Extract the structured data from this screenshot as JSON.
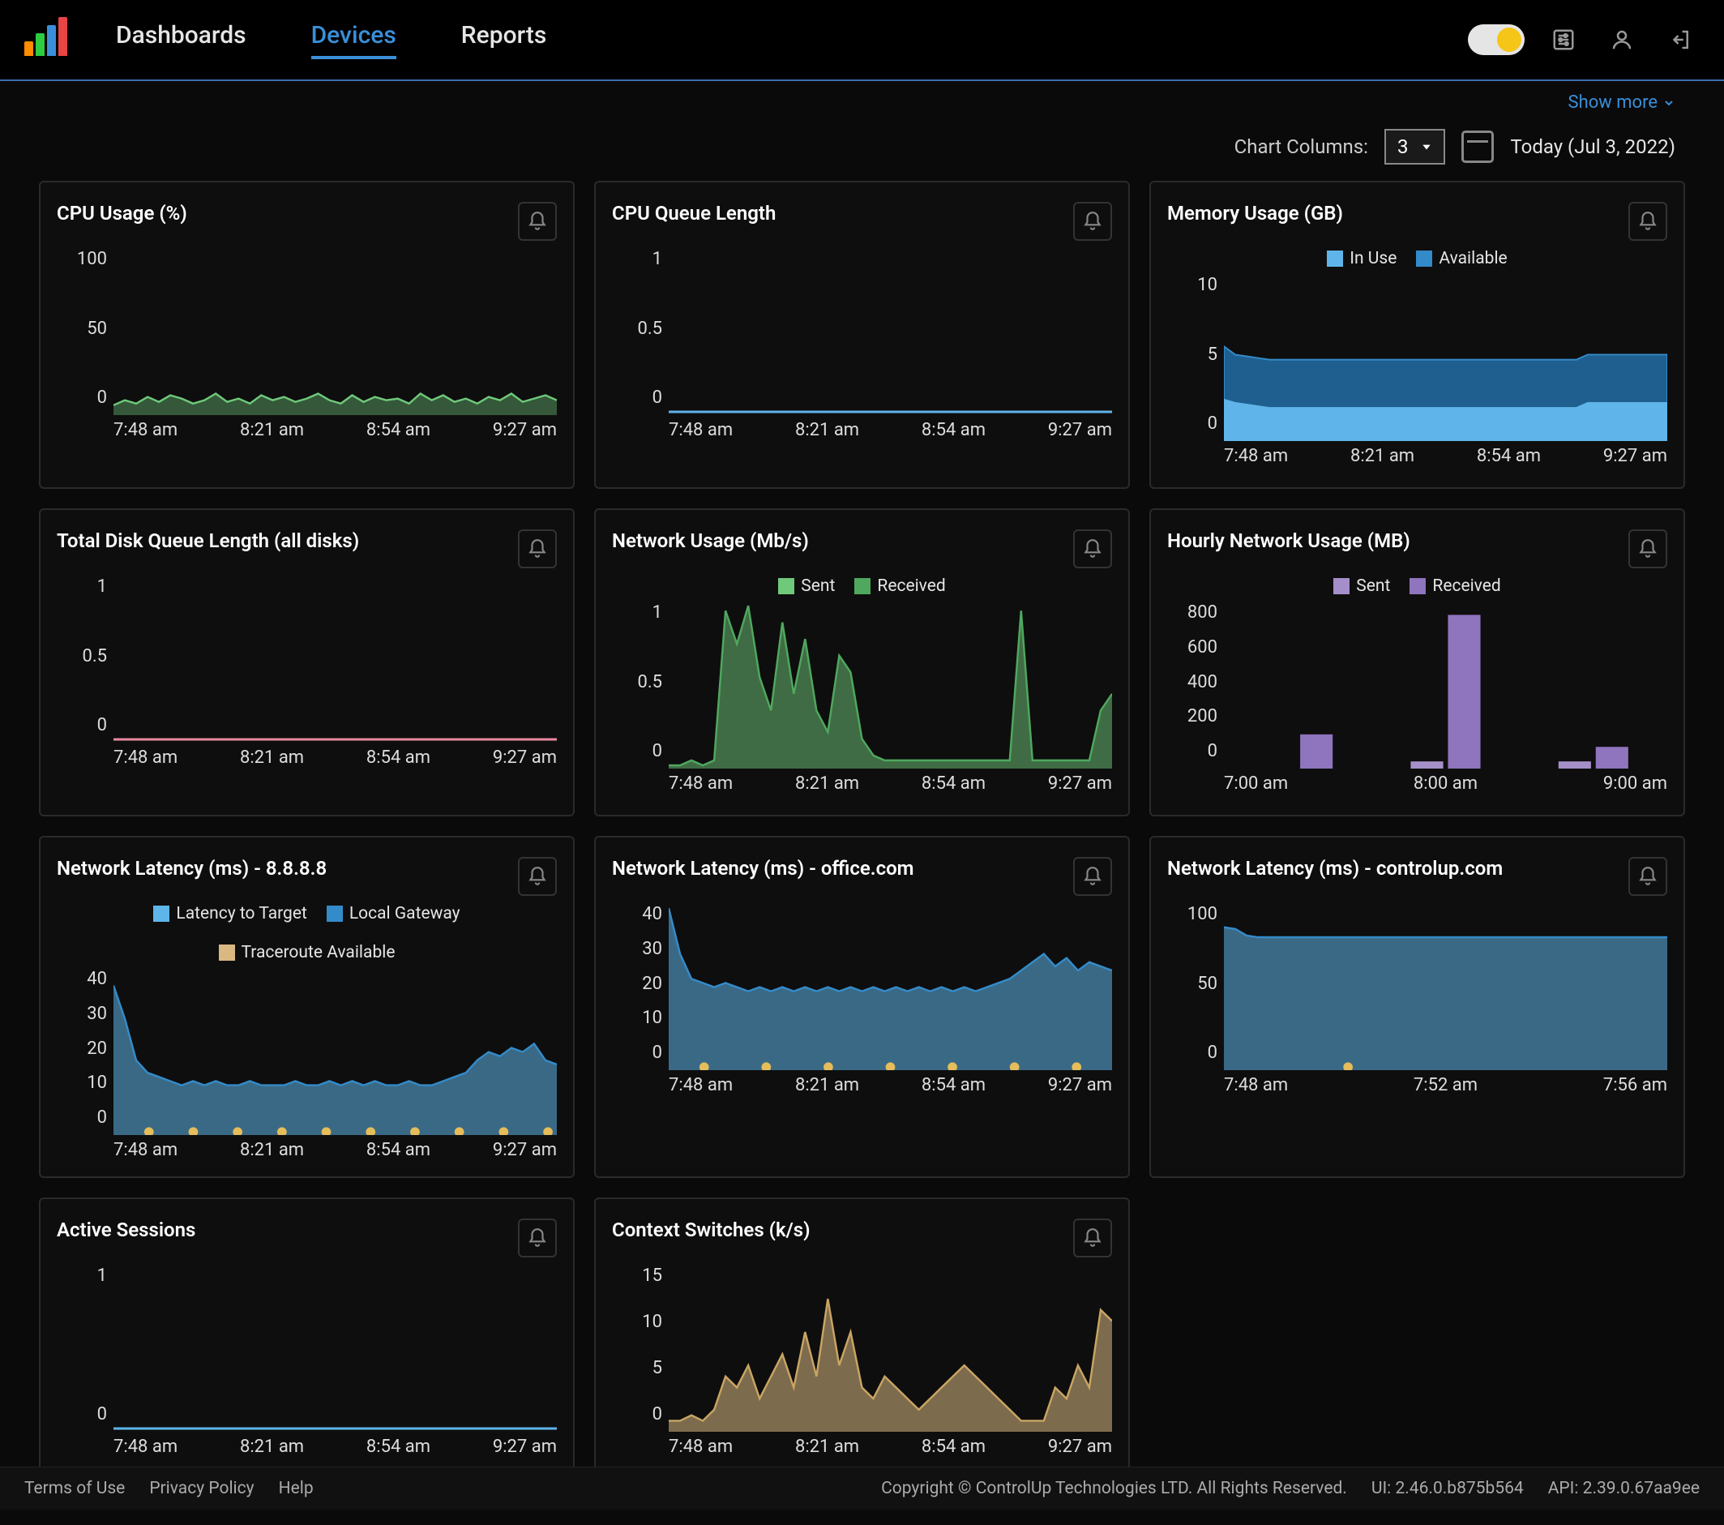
{
  "logo_bars": [
    {
      "h": 18,
      "c": "#ff8c00"
    },
    {
      "h": 28,
      "c": "#2ecc40"
    },
    {
      "h": 38,
      "c": "#3a8fd8"
    },
    {
      "h": 48,
      "c": "#e84545"
    }
  ],
  "nav": {
    "dashboards": "Dashboards",
    "devices": "Devices",
    "reports": "Reports"
  },
  "show_more": "Show more",
  "toolbar": {
    "chart_cols_label": "Chart Columns:",
    "chart_cols_value": "3",
    "date_label": "Today (Jul 3, 2022)"
  },
  "axis_ticks": {
    "std": [
      "7:48 am",
      "8:21 am",
      "8:54 am",
      "9:27 am"
    ],
    "hourly": [
      "7:00 am",
      "8:00 am",
      "9:00 am"
    ],
    "ctrlup": [
      "7:48 am",
      "7:52 am",
      "7:56 am"
    ]
  },
  "colors": {
    "bg": "#0a0a0a",
    "grid": "#2a2a2a",
    "green": "#6fc97b",
    "green_fill": "rgba(111,201,123,0.35)",
    "blue_line": "#5fb5ea",
    "blue_mid": "#348bc9",
    "blue_dark": "#1f5f8f",
    "pink": "#e88aa0",
    "purple": "#a58fc9",
    "tan": "#d9b882",
    "tan_fill": "rgba(217,184,130,0.55)",
    "yellow_dot": "#e5bd5a"
  },
  "charts": {
    "cpu_usage": {
      "title": "CPU Usage (%)",
      "type": "area",
      "ylim": [
        0,
        100
      ],
      "yticks": [
        100,
        50,
        0
      ],
      "stroke": "#6fc97b",
      "fill": "rgba(111,201,123,0.4)",
      "data": [
        6,
        9,
        7,
        11,
        8,
        12,
        10,
        7,
        9,
        13,
        8,
        10,
        7,
        12,
        9,
        11,
        8,
        10,
        13,
        9,
        7,
        12,
        8,
        11,
        9,
        10,
        7,
        13,
        9,
        12,
        8,
        10,
        7,
        11,
        9,
        13,
        8,
        10,
        12,
        9
      ]
    },
    "cpu_queue": {
      "title": "CPU Queue Length",
      "type": "line",
      "ylim": [
        0,
        1.0
      ],
      "yticks": [
        1.0,
        0.5,
        0
      ],
      "stroke": "#5fb5ea",
      "data": [
        0.02,
        0.02,
        0.02,
        0.02,
        0.02,
        0.02,
        0.02,
        0.02,
        0.02,
        0.02,
        0.02,
        0.02,
        0.02,
        0.02,
        0.02,
        0.02,
        0.02,
        0.02,
        0.02,
        0.02,
        0.02,
        0.02,
        0.02,
        0.02,
        0.02,
        0.02,
        0.02,
        0.02,
        0.02,
        0.02,
        0.02,
        0.02,
        0.02,
        0.02,
        0.02,
        0.02,
        0.02,
        0.02,
        0.02,
        0.02
      ]
    },
    "memory": {
      "title": "Memory Usage (GB)",
      "type": "stacked",
      "ylim": [
        0,
        10
      ],
      "yticks": [
        10,
        5,
        0
      ],
      "legend": [
        {
          "label": "In Use",
          "color": "#5fb5ea"
        },
        {
          "label": "Available",
          "color": "#348bc9"
        }
      ],
      "in_use": [
        2.5,
        2.3,
        2.2,
        2.1,
        2.0,
        2.0,
        2.0,
        2.0,
        2.0,
        2.0,
        2.0,
        2.0,
        2.0,
        2.0,
        2.0,
        2.0,
        2.0,
        2.0,
        2.0,
        2.0,
        2.0,
        2.0,
        2.0,
        2.0,
        2.0,
        2.0,
        2.0,
        2.0,
        2.0,
        2.0,
        2.0,
        2.0,
        2.3,
        2.3,
        2.3,
        2.3,
        2.3,
        2.3,
        2.3,
        2.3
      ],
      "available": [
        3.2,
        2.9,
        2.9,
        2.9,
        2.9,
        2.9,
        2.9,
        2.9,
        2.9,
        2.9,
        2.9,
        2.9,
        2.9,
        2.9,
        2.9,
        2.9,
        2.9,
        2.9,
        2.9,
        2.9,
        2.9,
        2.9,
        2.9,
        2.9,
        2.9,
        2.9,
        2.9,
        2.9,
        2.9,
        2.9,
        2.9,
        2.9,
        2.9,
        2.9,
        2.9,
        2.9,
        2.9,
        2.9,
        2.9,
        2.9
      ]
    },
    "disk_queue": {
      "title": "Total Disk Queue Length (all disks)",
      "type": "line",
      "ylim": [
        0,
        1.0
      ],
      "yticks": [
        1.0,
        0.5,
        0
      ],
      "stroke": "#e88aa0",
      "data": [
        0.02,
        0.02,
        0.02,
        0.02,
        0.02,
        0.02,
        0.02,
        0.02,
        0.02,
        0.02,
        0.02,
        0.02,
        0.02,
        0.02,
        0.02,
        0.02,
        0.02,
        0.02,
        0.02,
        0.02,
        0.02,
        0.02,
        0.02,
        0.02,
        0.02,
        0.02,
        0.02,
        0.02,
        0.02,
        0.02,
        0.02,
        0.02,
        0.02,
        0.02,
        0.02,
        0.02,
        0.02,
        0.02,
        0.02,
        0.02
      ]
    },
    "net_usage": {
      "title": "Network Usage (Mb/s)",
      "type": "area",
      "ylim": [
        0,
        1.0
      ],
      "yticks": [
        1.0,
        0.5,
        0
      ],
      "legend": [
        {
          "label": "Sent",
          "color": "#6fc97b"
        },
        {
          "label": "Received",
          "color": "#4fa85e"
        }
      ],
      "stroke": "#4fa85e",
      "fill": "rgba(111,201,123,0.5)",
      "data": [
        0.02,
        0.02,
        0.05,
        0.02,
        0.05,
        0.95,
        0.75,
        0.98,
        0.55,
        0.35,
        0.88,
        0.45,
        0.78,
        0.35,
        0.22,
        0.68,
        0.58,
        0.18,
        0.08,
        0.05,
        0.05,
        0.05,
        0.05,
        0.05,
        0.05,
        0.05,
        0.05,
        0.05,
        0.05,
        0.05,
        0.05,
        0.95,
        0.05,
        0.05,
        0.05,
        0.05,
        0.05,
        0.05,
        0.35,
        0.45
      ]
    },
    "hourly_net": {
      "title": "Hourly Network Usage (MB)",
      "type": "bar",
      "ylim": [
        0,
        800
      ],
      "yticks": [
        800,
        600,
        400,
        200,
        0
      ],
      "legend": [
        {
          "label": "Sent",
          "color": "#a58fc9"
        },
        {
          "label": "Received",
          "color": "#8f74be"
        }
      ],
      "pairs": [
        {
          "sent": 0,
          "recv": 165
        },
        {
          "sent": 35,
          "recv": 740
        },
        {
          "sent": 35,
          "recv": 105
        }
      ],
      "colors": {
        "sent": "#a58fc9",
        "recv": "#8f74be"
      }
    },
    "lat_8888": {
      "title": "Network Latency (ms) - 8.8.8.8",
      "type": "area",
      "ylim": [
        0,
        40
      ],
      "yticks": [
        40,
        30,
        20,
        10,
        0
      ],
      "legend": [
        {
          "label": "Latency to Target",
          "color": "#5fb5ea"
        },
        {
          "label": "Local Gateway",
          "color": "#348bc9"
        },
        {
          "label": "Traceroute Available",
          "color": "#d9b882"
        }
      ],
      "stroke": "#348bc9",
      "fill": "rgba(95,181,234,0.55)",
      "data": [
        36,
        28,
        18,
        15,
        14,
        13,
        12,
        13,
        12,
        13,
        12,
        12,
        13,
        12,
        12,
        12,
        13,
        12,
        12,
        13,
        12,
        13,
        12,
        13,
        12,
        12,
        13,
        12,
        12,
        13,
        14,
        15,
        18,
        20,
        19,
        21,
        20,
        22,
        18,
        17
      ],
      "dots": [
        0.08,
        0.18,
        0.28,
        0.38,
        0.48,
        0.58,
        0.68,
        0.78,
        0.88,
        0.98
      ]
    },
    "lat_office": {
      "title": "Network Latency (ms) - office.com",
      "type": "area",
      "ylim": [
        0,
        40
      ],
      "yticks": [
        40,
        30,
        20,
        10,
        0
      ],
      "stroke": "#348bc9",
      "fill": "rgba(95,181,234,0.55)",
      "data": [
        39,
        28,
        22,
        21,
        20,
        21,
        20,
        19,
        20,
        19,
        20,
        19,
        20,
        19,
        20,
        19,
        20,
        19,
        20,
        19,
        20,
        19,
        20,
        19,
        20,
        19,
        20,
        19,
        20,
        21,
        22,
        24,
        26,
        28,
        25,
        27,
        24,
        26,
        25,
        24
      ],
      "dots": [
        0.08,
        0.22,
        0.36,
        0.5,
        0.64,
        0.78,
        0.92
      ]
    },
    "lat_ctrlup": {
      "title": "Network Latency (ms) - controlup.com",
      "type": "area",
      "ylim": [
        0,
        100
      ],
      "yticks": [
        100,
        50,
        0
      ],
      "stroke": "#348bc9",
      "fill": "rgba(95,181,234,0.55)",
      "data": [
        86,
        85,
        81,
        80,
        80,
        80,
        80,
        80,
        80,
        80,
        80,
        80,
        80,
        80,
        80,
        80,
        80,
        80,
        80,
        80,
        80,
        80,
        80,
        80,
        80,
        80,
        80,
        80,
        80,
        80,
        80,
        80,
        80,
        80,
        80,
        80,
        80,
        80,
        80,
        80
      ],
      "dots": [
        0.28
      ]
    },
    "sessions": {
      "title": "Active Sessions",
      "type": "line",
      "ylim": [
        0,
        1
      ],
      "yticks": [
        1,
        0
      ],
      "stroke": "#5fb5ea",
      "data": [
        0.02,
        0.02,
        0.02,
        0.02,
        0.02,
        0.02,
        0.02,
        0.02,
        0.02,
        0.02,
        0.02,
        0.02,
        0.02,
        0.02,
        0.02,
        0.02,
        0.02,
        0.02,
        0.02,
        0.02,
        0.02,
        0.02,
        0.02,
        0.02,
        0.02,
        0.02,
        0.02,
        0.02,
        0.02,
        0.02,
        0.02,
        0.02,
        0.02,
        0.02,
        0.02,
        0.02,
        0.02,
        0.02,
        0.02,
        0.02
      ]
    },
    "ctx_switch": {
      "title": "Context Switches (k/s)",
      "type": "area",
      "ylim": [
        0,
        15
      ],
      "yticks": [
        15,
        10,
        5,
        0
      ],
      "stroke": "#c9a563",
      "fill": "rgba(217,184,130,0.55)",
      "data": [
        1,
        1,
        1.5,
        1,
        2,
        5,
        4,
        6,
        3,
        5,
        7,
        4,
        9,
        5,
        12,
        6,
        9,
        4,
        3,
        5,
        4,
        3,
        2,
        3,
        4,
        5,
        6,
        5,
        4,
        3,
        2,
        1,
        1,
        1,
        4,
        3,
        6,
        4,
        11,
        10
      ]
    }
  },
  "footer": {
    "terms": "Terms of Use",
    "privacy": "Privacy Policy",
    "help": "Help",
    "copyright": "Copyright © ControlUp Technologies LTD. All Rights Reserved.",
    "ui": "UI: 2.46.0.b875b564",
    "api": "API: 2.39.0.67aa9ee"
  }
}
